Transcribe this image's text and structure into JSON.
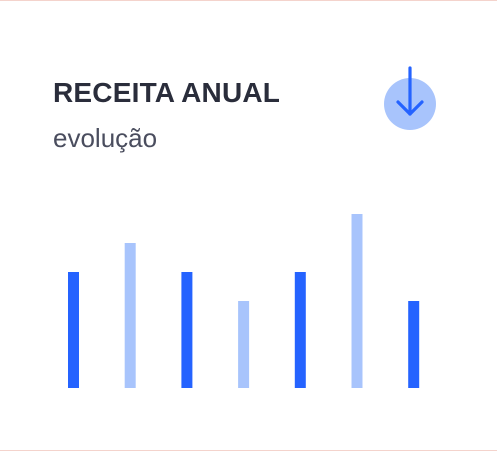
{
  "card": {
    "title": "RECEITA ANUAL",
    "subtitle": "evolução"
  },
  "actions": {
    "download_icon": "arrow-down-circle-icon"
  },
  "colors": {
    "primary": "#2563ff",
    "secondary": "#a8c4fc",
    "title": "#2a2d3b",
    "subtitle": "#4a4d5e",
    "icon_bg": "#a8c4fc",
    "icon_fg": "#2563ff",
    "rule": "#f4d3cc"
  },
  "chart_data": {
    "type": "bar",
    "title": "RECEITA ANUAL",
    "subtitle": "evolução",
    "xlabel": "",
    "ylabel": "",
    "ylim": [
      0,
      6
    ],
    "grid": false,
    "legend": "none",
    "values": [
      4,
      5,
      4,
      3,
      4,
      6,
      3
    ],
    "tones": [
      "primary",
      "secondary",
      "primary",
      "secondary",
      "primary",
      "secondary",
      "primary"
    ]
  }
}
